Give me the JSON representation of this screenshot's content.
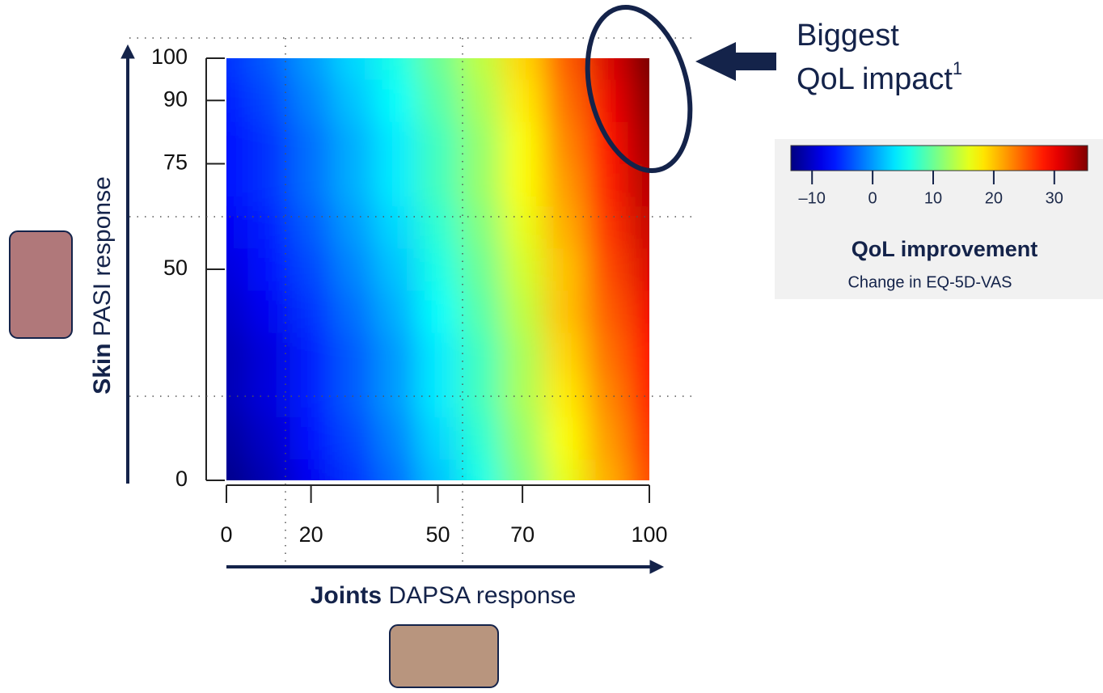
{
  "chart_data": {
    "type": "heatmap",
    "xlabel_bold": "Joints",
    "xlabel": "DAPSA response",
    "ylabel_bold": "Skin",
    "ylabel": "PASI response",
    "annotation": [
      "Biggest",
      "QoL impact"
    ],
    "annotation_superscript": "1",
    "x": [
      0,
      10,
      20,
      30,
      40,
      50,
      60,
      70,
      80,
      90,
      100
    ],
    "y": [
      0,
      10,
      20,
      30,
      40,
      50,
      60,
      70,
      80,
      90,
      100
    ],
    "z": [
      [
        -13,
        -11,
        -8,
        -5,
        -2,
        2,
        6,
        11,
        16,
        21,
        26
      ],
      [
        -12,
        -10,
        -7,
        -4,
        -1,
        3,
        7,
        12,
        17,
        22,
        27
      ],
      [
        -11,
        -9,
        -6,
        -3,
        0,
        4,
        8,
        13,
        18,
        23,
        28
      ],
      [
        -11,
        -9,
        -6,
        -3,
        0,
        4,
        8,
        13,
        19,
        24,
        29
      ],
      [
        -10,
        -8,
        -5,
        -2,
        1,
        5,
        9,
        14,
        20,
        25,
        30
      ],
      [
        -9,
        -7,
        -4,
        -1,
        2,
        6,
        10,
        15,
        20,
        26,
        31
      ],
      [
        -8,
        -6,
        -3,
        0,
        3,
        7,
        11,
        16,
        21,
        27,
        32
      ],
      [
        -7,
        -5,
        -2,
        1,
        4,
        8,
        12,
        17,
        22,
        28,
        33
      ],
      [
        -7,
        -5,
        -2,
        1,
        4,
        8,
        12,
        17,
        23,
        29,
        34
      ],
      [
        -6,
        -4,
        -1,
        2,
        5,
        9,
        13,
        18,
        24,
        30,
        35
      ],
      [
        -5,
        -3,
        0,
        3,
        6,
        10,
        14,
        19,
        25,
        31,
        36
      ]
    ],
    "xlim": [
      0,
      100
    ],
    "xticks": [
      0,
      20,
      50,
      70,
      100
    ],
    "ylim": [
      0,
      100
    ],
    "yticks": [
      0,
      50,
      75,
      90,
      100
    ],
    "colormap": "jet",
    "colorbar": {
      "title": "QoL improvement",
      "subtitle": "Change in EQ-5D-VAS",
      "zlim": [
        -13.5,
        35.5
      ],
      "ticks": [
        {
          "value": -10,
          "label": "–10"
        },
        0,
        10,
        20,
        30
      ]
    }
  }
}
